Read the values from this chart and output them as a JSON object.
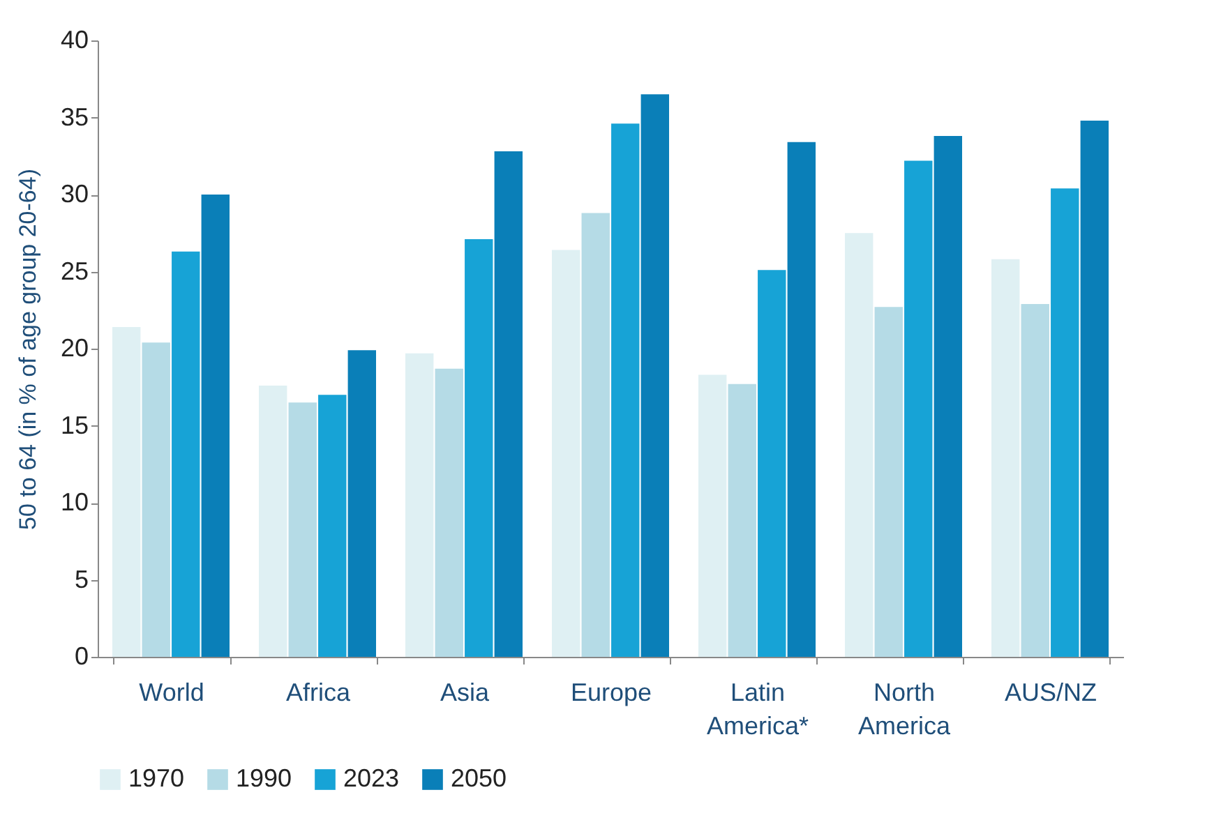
{
  "chart_data": {
    "type": "bar",
    "ylabel": "50 to 64 (in % of age group 20-64)",
    "categories": [
      "World",
      "Africa",
      "Asia",
      "Europe",
      "Latin America*",
      "North America",
      "AUS/NZ"
    ],
    "series": [
      {
        "name": "1970",
        "color": "#dff0f3",
        "values": [
          21.4,
          17.6,
          19.7,
          26.4,
          18.3,
          27.5,
          25.8
        ]
      },
      {
        "name": "1990",
        "color": "#b5dbe6",
        "values": [
          20.4,
          16.5,
          18.7,
          28.8,
          17.7,
          22.7,
          22.9
        ]
      },
      {
        "name": "2023",
        "color": "#17a3d6",
        "values": [
          26.3,
          17.0,
          27.1,
          34.6,
          25.1,
          32.2,
          30.4
        ]
      },
      {
        "name": "2050",
        "color": "#0a7fb8",
        "values": [
          30.0,
          19.9,
          32.8,
          36.5,
          33.4,
          33.8,
          34.8
        ]
      }
    ],
    "ylim": [
      0,
      40
    ],
    "yticks": [
      0,
      5,
      10,
      15,
      20,
      25,
      30,
      35,
      40
    ],
    "grid": false,
    "legend": "bottom"
  }
}
